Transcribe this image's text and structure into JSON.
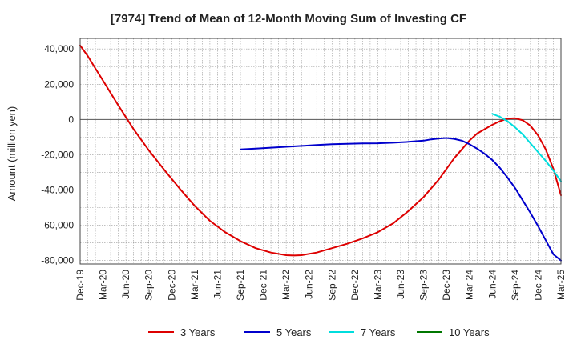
{
  "chart_data": {
    "type": "line",
    "title": "[7974]  Trend of Mean of 12-Month Moving Sum of Investing CF",
    "xlabel": "",
    "ylabel": "Amount (million yen)",
    "ylim": [
      -82000,
      46000
    ],
    "yticks": [
      40000,
      20000,
      0,
      -20000,
      -40000,
      -60000,
      -80000
    ],
    "ytick_labels": [
      "40,000",
      "20,000",
      "0",
      "-20,000",
      "-40,000",
      "-60,000",
      "-80,000"
    ],
    "x_start": "2019-12",
    "x_end": "2025-03",
    "xtick_labels": [
      "Dec-19",
      "Mar-20",
      "Jun-20",
      "Sep-20",
      "Dec-20",
      "Mar-21",
      "Jun-21",
      "Sep-21",
      "Dec-21",
      "Mar-22",
      "Jun-22",
      "Sep-22",
      "Dec-22",
      "Mar-23",
      "Jun-23",
      "Sep-23",
      "Dec-23",
      "Mar-24",
      "Jun-24",
      "Sep-24",
      "Dec-24",
      "Mar-25"
    ],
    "grid": true,
    "legend_position": "bottom",
    "series": [
      {
        "name": "3 Years",
        "color": "#dd0000",
        "points": [
          [
            0,
            42000
          ],
          [
            1,
            36000
          ],
          [
            2,
            29000
          ],
          [
            3,
            22000
          ],
          [
            5,
            8000
          ],
          [
            7,
            -5500
          ],
          [
            9,
            -17500
          ],
          [
            11,
            -28500
          ],
          [
            13,
            -39000
          ],
          [
            15,
            -49000
          ],
          [
            17,
            -57500
          ],
          [
            19,
            -64000
          ],
          [
            21,
            -69000
          ],
          [
            23,
            -73000
          ],
          [
            25,
            -75500
          ],
          [
            27,
            -77000
          ],
          [
            28,
            -77200
          ],
          [
            29,
            -77000
          ],
          [
            31,
            -75500
          ],
          [
            33,
            -73000
          ],
          [
            35,
            -70500
          ],
          [
            37,
            -67500
          ],
          [
            39,
            -64000
          ],
          [
            41,
            -59000
          ],
          [
            43,
            -52000
          ],
          [
            45,
            -44000
          ],
          [
            47,
            -34000
          ],
          [
            49,
            -22000
          ],
          [
            51,
            -12000
          ],
          [
            52,
            -8000
          ],
          [
            54,
            -3000
          ],
          [
            55,
            -1000
          ],
          [
            56,
            500
          ],
          [
            57,
            700
          ],
          [
            58,
            -500
          ],
          [
            59,
            -3500
          ],
          [
            60,
            -9000
          ],
          [
            61,
            -17000
          ],
          [
            62,
            -28000
          ],
          [
            63,
            -43000
          ]
        ]
      },
      {
        "name": "5 Years",
        "color": "#0000cc",
        "points": [
          [
            21,
            -17000
          ],
          [
            23,
            -16500
          ],
          [
            25,
            -16000
          ],
          [
            27,
            -15500
          ],
          [
            29,
            -15000
          ],
          [
            31,
            -14500
          ],
          [
            33,
            -14000
          ],
          [
            35,
            -13800
          ],
          [
            37,
            -13600
          ],
          [
            39,
            -13500
          ],
          [
            41,
            -13200
          ],
          [
            43,
            -12700
          ],
          [
            45,
            -12000
          ],
          [
            46,
            -11300
          ],
          [
            47,
            -10800
          ],
          [
            48,
            -10500
          ],
          [
            49,
            -11000
          ],
          [
            50,
            -12000
          ],
          [
            51,
            -14000
          ],
          [
            52,
            -16500
          ],
          [
            53,
            -19500
          ],
          [
            54,
            -23000
          ],
          [
            55,
            -27500
          ],
          [
            56,
            -33000
          ],
          [
            57,
            -39000
          ],
          [
            58,
            -46000
          ],
          [
            59,
            -53000
          ],
          [
            60,
            -60500
          ],
          [
            61,
            -68500
          ],
          [
            62,
            -76500
          ],
          [
            63,
            -80000
          ]
        ]
      },
      {
        "name": "7 Years",
        "color": "#00dddd",
        "points": [
          [
            54,
            3200
          ],
          [
            55,
            1500
          ],
          [
            56,
            -1000
          ],
          [
            57,
            -4500
          ],
          [
            58,
            -8500
          ],
          [
            59,
            -13500
          ],
          [
            60,
            -18500
          ],
          [
            61,
            -23500
          ],
          [
            62,
            -29000
          ],
          [
            63,
            -35000
          ]
        ]
      },
      {
        "name": "10 Years",
        "color": "#007700",
        "points": []
      }
    ]
  }
}
